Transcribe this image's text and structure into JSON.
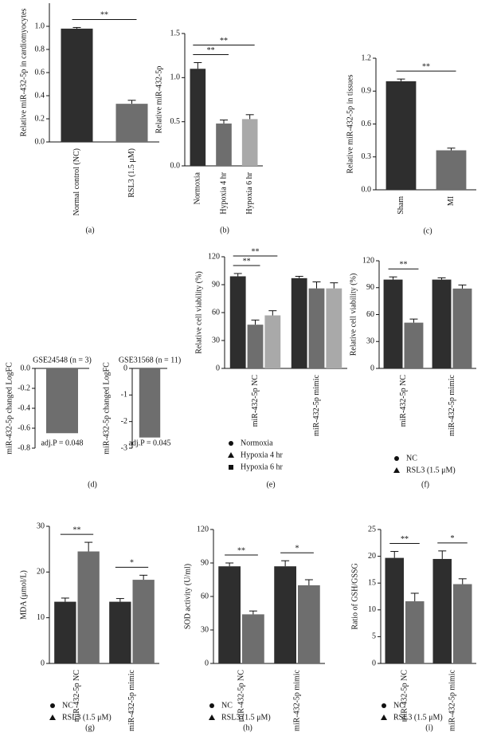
{
  "chart_data": [
    {
      "type": "bar",
      "panel": "(a)",
      "ylabel": "Relative miR-432-5p in cardiomyocytes",
      "categories": [
        "Normal control (NC)",
        "RSL3 (1.5 μM)"
      ],
      "values": [
        0.98,
        0.33
      ],
      "errors": [
        0.01,
        0.03
      ],
      "color": "#2e2e2e",
      "colors": [
        "#2e2e2e",
        "#6e6e6e"
      ],
      "ylim": [
        0,
        1.2
      ],
      "yticks": [
        {
          "value": 0,
          "label": "0.0"
        },
        0.2,
        0.4,
        0.6,
        0.8,
        {
          "value": 1,
          "label": "1.0"
        }
      ],
      "sig": [
        {
          "label": "**",
          "bars": [
            0,
            1
          ]
        }
      ]
    },
    {
      "type": "bar",
      "panel": "(b)",
      "ylabel": "Relative miR-432-5p",
      "categories": [
        "Normoxia",
        "Hypoxia 4 hr",
        "Hypoxia 6 hr"
      ],
      "values": [
        1.1,
        0.48,
        0.53
      ],
      "errors": [
        0.07,
        0.04,
        0.05
      ],
      "colors": [
        "#2e2e2e",
        "#6e6e6e",
        "#a9a9a9"
      ],
      "ylim": [
        0,
        1.5
      ],
      "yticks": [
        {
          "value": 0,
          "label": "0.0"
        },
        0.5,
        {
          "value": 1,
          "label": "1.0"
        },
        1.5
      ],
      "sig": [
        {
          "label": "**",
          "bars": [
            0,
            1
          ]
        },
        {
          "label": "**",
          "bars": [
            0,
            2
          ]
        }
      ]
    },
    {
      "type": "bar",
      "panel": "(c)",
      "ylabel": "Relative miR-432-5p in tissues",
      "categories": [
        "Sham",
        "MI"
      ],
      "values": [
        0.99,
        0.36
      ],
      "errors": [
        0.02,
        0.02
      ],
      "colors": [
        "#2e2e2e",
        "#6e6e6e"
      ],
      "ylim": [
        0,
        1.2
      ],
      "yticks": [
        {
          "value": 0,
          "label": "0.0"
        },
        0.3,
        0.6,
        0.9,
        1.2
      ],
      "sig": [
        {
          "label": "**",
          "bars": [
            0,
            1
          ]
        }
      ]
    },
    {
      "type": "bar",
      "panel": "(d)",
      "title": "GSE24548 (n = 3)",
      "ylabel": "miR-432-5p changed LogFC",
      "categories": [
        null
      ],
      "values": [
        -0.65
      ],
      "colors": [
        "#6e6e6e"
      ],
      "note": "adj.P = 0.048",
      "ylim": [
        -0.8,
        0
      ],
      "yticks": [
        {
          "value": 0,
          "label": "0.0"
        },
        -0.2,
        -0.4,
        -0.6,
        -0.8
      ]
    },
    {
      "type": "bar",
      "title": "GSE31568 (n = 11)",
      "ylabel": "miR-432-5p changed LogFC",
      "categories": [
        null
      ],
      "values": [
        -2.6
      ],
      "colors": [
        "#6e6e6e"
      ],
      "note": "adj.P = 0.045",
      "ylim": [
        -3,
        0
      ],
      "yticks": [
        0,
        -1,
        -2,
        -3
      ]
    },
    {
      "type": "grouped-bar",
      "panel": "(e)",
      "ylabel": "Relative cell viability (%)",
      "categories": [
        "miR-432-5p NC",
        "miR-432-5p mimic"
      ],
      "series": [
        {
          "name": "Normoxia",
          "color": "#2e2e2e",
          "marker": "circle",
          "values": [
            99,
            97
          ],
          "errors": [
            3,
            2
          ]
        },
        {
          "name": "Hypoxia 4 hr",
          "color": "#6e6e6e",
          "marker": "triangle",
          "values": [
            47,
            86
          ],
          "errors": [
            5,
            7
          ]
        },
        {
          "name": "Hypoxia 6 hr",
          "color": "#a9a9a9",
          "marker": "square",
          "values": [
            57,
            86
          ],
          "errors": [
            5,
            6
          ]
        }
      ],
      "ylim": [
        0,
        120
      ],
      "yticks": [
        0,
        30,
        60,
        90,
        120
      ],
      "sig": [
        {
          "label": "**",
          "bars": [
            0,
            1
          ]
        },
        {
          "label": "**",
          "bars": [
            0,
            2
          ]
        }
      ]
    },
    {
      "type": "grouped-bar",
      "panel": "(f)",
      "ylabel": "Relative cell viability (%)",
      "categories": [
        "miR-432-5p NC",
        "miR-432-5p mimic"
      ],
      "series": [
        {
          "name": "NC",
          "color": "#2e2e2e",
          "marker": "circle",
          "values": [
            99,
            99
          ],
          "errors": [
            3,
            2
          ]
        },
        {
          "name": "RSL3 (1.5 μM)",
          "color": "#6e6e6e",
          "marker": "triangle",
          "values": [
            51,
            89
          ],
          "errors": [
            4,
            4
          ]
        }
      ],
      "ylim": [
        0,
        120
      ],
      "yticks": [
        0,
        30,
        60,
        90,
        120
      ],
      "sig": [
        {
          "label": "**",
          "bars": [
            0,
            1
          ]
        }
      ]
    },
    {
      "type": "grouped-bar",
      "panel": "(g)",
      "ylabel": "MDA (μmol/L)",
      "categories": [
        "miR-432-5p NC",
        "miR-432-5p mimic"
      ],
      "series": [
        {
          "name": "NC",
          "color": "#2e2e2e",
          "marker": "circle",
          "values": [
            13.5,
            13.5
          ],
          "errors": [
            0.8,
            0.7
          ]
        },
        {
          "name": "RSL3 (1.5 μM)",
          "color": "#6e6e6e",
          "marker": "triangle",
          "values": [
            24.5,
            18.3
          ],
          "errors": [
            2,
            1
          ]
        }
      ],
      "ylim": [
        0,
        30
      ],
      "yticks": [
        0,
        10,
        20,
        30
      ],
      "sig": [
        {
          "label": "**",
          "bars": [
            0,
            1
          ]
        },
        {
          "label": "*",
          "bars": [
            2,
            3
          ]
        }
      ]
    },
    {
      "type": "grouped-bar",
      "panel": "(h)",
      "ylabel": "SOD activity (U/ml)",
      "categories": [
        "miR-432-5p NC",
        "miR-432-5p mimic"
      ],
      "series": [
        {
          "name": "NC",
          "color": "#2e2e2e",
          "marker": "circle",
          "values": [
            87,
            87
          ],
          "errors": [
            3,
            5
          ]
        },
        {
          "name": "RSL3 (1.5 μM)",
          "color": "#6e6e6e",
          "marker": "triangle",
          "values": [
            44,
            70
          ],
          "errors": [
            3,
            5
          ]
        }
      ],
      "ylim": [
        0,
        120
      ],
      "yticks": [
        0,
        30,
        60,
        90,
        120
      ],
      "sig": [
        {
          "label": "**",
          "bars": [
            0,
            1
          ]
        },
        {
          "label": "*",
          "bars": [
            2,
            3
          ]
        }
      ]
    },
    {
      "type": "grouped-bar",
      "panel": "(i)",
      "ylabel": "Ratio of GSH/GSSG",
      "categories": [
        "miR-432-5p NC",
        "miR-432-5p mimic"
      ],
      "series": [
        {
          "name": "NC",
          "color": "#2e2e2e",
          "marker": "circle",
          "values": [
            19.7,
            19.5
          ],
          "errors": [
            1.2,
            1.5
          ]
        },
        {
          "name": "RSL3 (1.5 μM)",
          "color": "#6e6e6e",
          "marker": "triangle",
          "values": [
            11.6,
            14.8
          ],
          "errors": [
            1.5,
            1
          ]
        }
      ],
      "ylim": [
        0,
        25
      ],
      "yticks": [
        0,
        5,
        10,
        15,
        20,
        25
      ],
      "sig": [
        {
          "label": "**",
          "bars": [
            0,
            1
          ]
        },
        {
          "label": "*",
          "bars": [
            2,
            3
          ]
        }
      ]
    }
  ]
}
